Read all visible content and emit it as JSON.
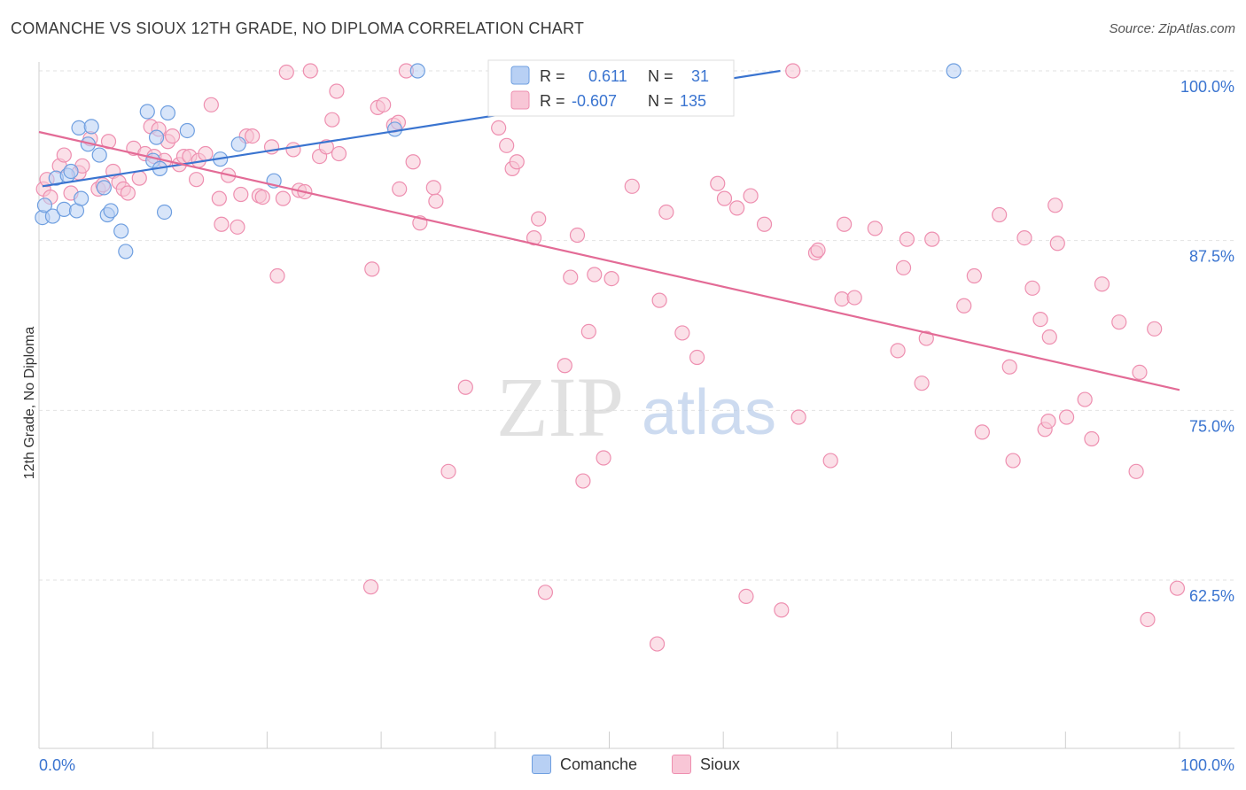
{
  "title": "COMANCHE VS SIOUX 12TH GRADE, NO DIPLOMA CORRELATION CHART",
  "source": "Source: ZipAtlas.com",
  "watermark": {
    "zip": "ZIP",
    "atlas": "atlas"
  },
  "chart_data": {
    "type": "scatter",
    "xlabel": "",
    "ylabel": "12th Grade, No Diploma",
    "xlim": [
      0,
      100
    ],
    "ylim": [
      50,
      102
    ],
    "x_tick_labels": [
      "0.0%",
      "100.0%"
    ],
    "y_ticks": [
      62.5,
      75.0,
      87.5,
      100.0
    ],
    "y_tick_labels": [
      "62.5%",
      "75.0%",
      "87.5%",
      "100.0%"
    ],
    "grid": true,
    "legend_position": "top-center",
    "series": [
      {
        "name": "Comanche",
        "color": "#6f9fe0",
        "fill": "#b8d0f4",
        "line_color": "#3a74d0",
        "R": "0.611",
        "N": "31",
        "trend": [
          [
            0.3,
            91.5
          ],
          [
            65,
            100
          ]
        ],
        "points": [
          [
            0.3,
            89.2
          ],
          [
            0.5,
            90.1
          ],
          [
            1.2,
            89.3
          ],
          [
            1.5,
            92.1
          ],
          [
            2.2,
            89.8
          ],
          [
            2.5,
            92.3
          ],
          [
            2.8,
            92.6
          ],
          [
            3.3,
            89.7
          ],
          [
            3.5,
            95.8
          ],
          [
            3.7,
            90.6
          ],
          [
            4.3,
            94.6
          ],
          [
            4.6,
            95.9
          ],
          [
            5.3,
            93.8
          ],
          [
            5.7,
            91.4
          ],
          [
            6.0,
            89.4
          ],
          [
            6.3,
            89.7
          ],
          [
            7.2,
            88.2
          ],
          [
            7.6,
            86.7
          ],
          [
            9.5,
            97.0
          ],
          [
            10.0,
            93.4
          ],
          [
            10.3,
            95.1
          ],
          [
            10.6,
            92.8
          ],
          [
            11.0,
            89.6
          ],
          [
            11.3,
            96.9
          ],
          [
            13.0,
            95.6
          ],
          [
            15.9,
            93.5
          ],
          [
            17.5,
            94.6
          ],
          [
            20.6,
            91.9
          ],
          [
            31.2,
            95.7
          ],
          [
            33.2,
            100.0
          ],
          [
            80.2,
            100.0
          ]
        ]
      },
      {
        "name": "Sioux",
        "color": "#ee8fb0",
        "fill": "#f8c6d6",
        "line_color": "#e36b96",
        "R": "-0.607",
        "N": "135",
        "trend": [
          [
            0,
            95.5
          ],
          [
            100,
            76.5
          ]
        ],
        "points": [
          [
            0.4,
            91.3
          ],
          [
            0.7,
            92.0
          ],
          [
            1.0,
            90.7
          ],
          [
            1.8,
            93.0
          ],
          [
            2.2,
            93.8
          ],
          [
            2.8,
            91.0
          ],
          [
            3.5,
            92.5
          ],
          [
            3.8,
            93.0
          ],
          [
            4.5,
            95.0
          ],
          [
            5.2,
            91.3
          ],
          [
            5.6,
            91.6
          ],
          [
            6.1,
            94.8
          ],
          [
            6.5,
            92.6
          ],
          [
            7.0,
            91.8
          ],
          [
            7.4,
            91.3
          ],
          [
            7.8,
            91.0
          ],
          [
            8.3,
            94.3
          ],
          [
            8.8,
            92.1
          ],
          [
            9.3,
            93.9
          ],
          [
            9.8,
            95.9
          ],
          [
            10.1,
            93.7
          ],
          [
            10.5,
            95.7
          ],
          [
            11.0,
            93.4
          ],
          [
            11.3,
            94.8
          ],
          [
            11.7,
            95.2
          ],
          [
            12.3,
            93.1
          ],
          [
            12.7,
            93.7
          ],
          [
            13.2,
            93.7
          ],
          [
            13.8,
            92.0
          ],
          [
            14.0,
            93.4
          ],
          [
            14.6,
            93.9
          ],
          [
            15.1,
            97.5
          ],
          [
            15.8,
            90.6
          ],
          [
            16.0,
            88.7
          ],
          [
            16.6,
            92.3
          ],
          [
            17.4,
            88.5
          ],
          [
            17.7,
            90.9
          ],
          [
            18.2,
            95.2
          ],
          [
            18.7,
            95.2
          ],
          [
            19.3,
            90.8
          ],
          [
            19.6,
            90.7
          ],
          [
            20.4,
            94.4
          ],
          [
            20.9,
            84.9
          ],
          [
            21.4,
            90.6
          ],
          [
            21.7,
            99.9
          ],
          [
            22.3,
            94.2
          ],
          [
            22.8,
            91.2
          ],
          [
            23.3,
            91.1
          ],
          [
            23.8,
            100.0
          ],
          [
            24.6,
            93.7
          ],
          [
            25.2,
            94.4
          ],
          [
            25.7,
            96.4
          ],
          [
            26.3,
            93.9
          ],
          [
            26.1,
            98.5
          ],
          [
            29.1,
            62.0
          ],
          [
            29.2,
            85.4
          ],
          [
            29.7,
            97.3
          ],
          [
            30.2,
            97.5
          ],
          [
            31.1,
            96.0
          ],
          [
            31.5,
            96.2
          ],
          [
            31.6,
            91.3
          ],
          [
            32.2,
            100.0
          ],
          [
            32.8,
            93.3
          ],
          [
            33.4,
            88.8
          ],
          [
            34.6,
            91.4
          ],
          [
            34.8,
            90.4
          ],
          [
            35.9,
            70.5
          ],
          [
            37.4,
            76.7
          ],
          [
            40.3,
            95.8
          ],
          [
            41.0,
            94.5
          ],
          [
            41.5,
            92.8
          ],
          [
            41.9,
            93.3
          ],
          [
            43.4,
            87.7
          ],
          [
            43.8,
            89.1
          ],
          [
            44.4,
            61.6
          ],
          [
            46.1,
            78.3
          ],
          [
            46.6,
            84.8
          ],
          [
            47.2,
            87.9
          ],
          [
            47.7,
            69.8
          ],
          [
            48.2,
            80.8
          ],
          [
            48.7,
            85.0
          ],
          [
            49.5,
            71.5
          ],
          [
            50.2,
            84.7
          ],
          [
            52.0,
            91.5
          ],
          [
            54.2,
            57.8
          ],
          [
            54.4,
            83.1
          ],
          [
            55.0,
            89.6
          ],
          [
            56.4,
            80.7
          ],
          [
            57.7,
            78.9
          ],
          [
            59.5,
            91.7
          ],
          [
            60.1,
            90.6
          ],
          [
            61.2,
            89.9
          ],
          [
            62.0,
            61.3
          ],
          [
            62.4,
            90.8
          ],
          [
            63.6,
            88.7
          ],
          [
            65.1,
            60.3
          ],
          [
            66.1,
            100.0
          ],
          [
            66.6,
            74.5
          ],
          [
            68.1,
            86.6
          ],
          [
            68.3,
            86.8
          ],
          [
            69.4,
            71.3
          ],
          [
            70.4,
            83.2
          ],
          [
            70.6,
            88.7
          ],
          [
            71.5,
            83.3
          ],
          [
            73.3,
            88.4
          ],
          [
            75.3,
            79.4
          ],
          [
            75.8,
            85.5
          ],
          [
            76.1,
            87.6
          ],
          [
            77.4,
            77.0
          ],
          [
            77.8,
            80.3
          ],
          [
            78.3,
            87.6
          ],
          [
            81.1,
            82.7
          ],
          [
            82.0,
            84.9
          ],
          [
            82.7,
            73.4
          ],
          [
            84.2,
            89.4
          ],
          [
            85.1,
            78.2
          ],
          [
            85.4,
            71.3
          ],
          [
            86.4,
            87.7
          ],
          [
            87.1,
            84.0
          ],
          [
            87.8,
            81.7
          ],
          [
            88.2,
            73.6
          ],
          [
            88.5,
            74.2
          ],
          [
            88.6,
            80.4
          ],
          [
            89.1,
            90.1
          ],
          [
            89.3,
            87.3
          ],
          [
            90.1,
            74.5
          ],
          [
            91.7,
            75.8
          ],
          [
            92.3,
            72.9
          ],
          [
            93.2,
            84.3
          ],
          [
            94.7,
            81.5
          ],
          [
            96.2,
            70.5
          ],
          [
            96.5,
            77.8
          ],
          [
            97.2,
            59.6
          ],
          [
            97.8,
            81.0
          ],
          [
            99.8,
            61.9
          ]
        ]
      }
    ]
  }
}
